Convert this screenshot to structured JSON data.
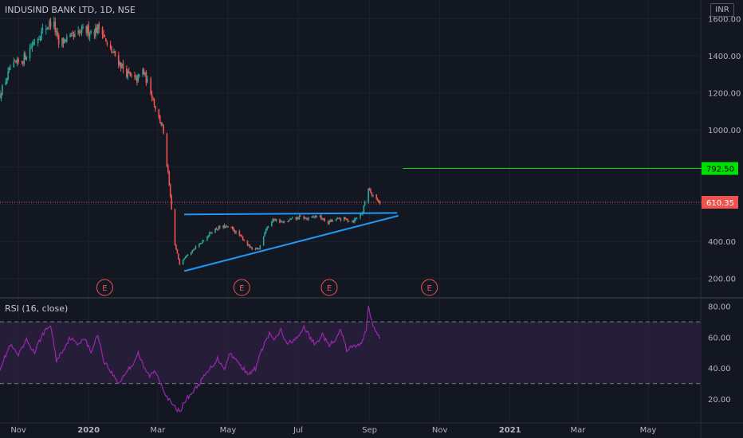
{
  "header": {
    "symbol_title": "INDUSIND BANK LTD, 1D, NSE",
    "currency": "INR"
  },
  "rsi_header": {
    "title": "RSI (16, close)"
  },
  "colors": {
    "background": "#131722",
    "grid": "#1e222d",
    "axis_text": "#b2b5be",
    "candle_up": "#26a69a",
    "candle_down": "#ef5350",
    "trendline": "#2196f3",
    "target_line": "#00e000",
    "price_line": "#ef5350",
    "rsi_line": "#9c27b0",
    "rsi_band": "#2a1e3c",
    "earnings": "#ef5350"
  },
  "chart_data": [
    {
      "type": "candlestick",
      "title": "INDUSIND BANK LTD, 1D, NSE",
      "currency": "INR",
      "x_tick_labels": [
        "Nov",
        "2020",
        "Mar",
        "May",
        "Jul",
        "Sep",
        "Nov",
        "2021",
        "Mar",
        "May"
      ],
      "x_ticks": [
        "2019-11-01",
        "2020-01-01",
        "2020-03-01",
        "2020-05-01",
        "2020-07-01",
        "2020-09-01",
        "2020-11-01",
        "2021-01-01",
        "2021-03-01",
        "2021-05-01"
      ],
      "y_ticks": [
        200,
        400,
        600,
        800,
        1000,
        1200,
        1400,
        1600
      ],
      "y_tick_labels": [
        "200.00",
        "400.00",
        "600.00",
        "800.00",
        "1000.00",
        "1200.00",
        "1400.00",
        "1600.00"
      ],
      "ylim": [
        100,
        1700
      ],
      "xlim": [
        "2019-10-16",
        "2021-06-15"
      ],
      "price_path": [
        [
          "2019-10-16",
          1190
        ],
        [
          "2019-10-25",
          1330
        ],
        [
          "2019-11-05",
          1380
        ],
        [
          "2019-11-15",
          1480
        ],
        [
          "2019-11-26",
          1560
        ],
        [
          "2019-12-01",
          1590
        ],
        [
          "2019-12-06",
          1460
        ],
        [
          "2019-12-12",
          1490
        ],
        [
          "2019-12-20",
          1500
        ],
        [
          "2019-12-28",
          1540
        ],
        [
          "2020-01-05",
          1530
        ],
        [
          "2020-01-12",
          1560
        ],
        [
          "2020-01-17",
          1450
        ],
        [
          "2020-01-24",
          1400
        ],
        [
          "2020-01-31",
          1330
        ],
        [
          "2020-02-07",
          1280
        ],
        [
          "2020-02-12",
          1270
        ],
        [
          "2020-02-17",
          1320
        ],
        [
          "2020-02-24",
          1210
        ],
        [
          "2020-03-01",
          1080
        ],
        [
          "2020-03-05",
          1020
        ],
        [
          "2020-03-10",
          760
        ],
        [
          "2020-03-16",
          380
        ],
        [
          "2020-03-20",
          280
        ],
        [
          "2020-03-26",
          330
        ],
        [
          "2020-04-02",
          360
        ],
        [
          "2020-04-10",
          410
        ],
        [
          "2020-04-18",
          460
        ],
        [
          "2020-04-26",
          480
        ],
        [
          "2020-05-04",
          470
        ],
        [
          "2020-05-13",
          420
        ],
        [
          "2020-05-22",
          355
        ],
        [
          "2020-05-28",
          360
        ],
        [
          "2020-06-03",
          470
        ],
        [
          "2020-06-10",
          520
        ],
        [
          "2020-06-18",
          500
        ],
        [
          "2020-06-26",
          520
        ],
        [
          "2020-07-03",
          530
        ],
        [
          "2020-07-10",
          520
        ],
        [
          "2020-07-18",
          540
        ],
        [
          "2020-07-26",
          500
        ],
        [
          "2020-08-03",
          520
        ],
        [
          "2020-08-10",
          520
        ],
        [
          "2020-08-18",
          510
        ],
        [
          "2020-08-26",
          560
        ],
        [
          "2020-08-31",
          690
        ],
        [
          "2020-09-05",
          640
        ],
        [
          "2020-09-10",
          610
        ]
      ],
      "earnings_markers": [
        {
          "label": "E",
          "date": "2020-01-15"
        },
        {
          "label": "E",
          "date": "2020-05-13"
        },
        {
          "label": "E",
          "date": "2020-07-28"
        },
        {
          "label": "E",
          "date": "2020-10-23"
        }
      ],
      "trendlines": [
        {
          "name": "resistance",
          "from": [
            "2020-03-24",
            545
          ],
          "to": [
            "2020-09-25",
            553
          ]
        },
        {
          "name": "support",
          "from": [
            "2020-03-24",
            240
          ],
          "to": [
            "2020-09-26",
            538
          ]
        }
      ],
      "target_level": {
        "value": 792.5,
        "label": "792.50",
        "from": "2020-09-30"
      },
      "last_price": {
        "value": 610.35,
        "label": "610.35"
      }
    },
    {
      "type": "line",
      "title": "RSI (16, close)",
      "y_ticks": [
        20,
        40,
        60,
        80
      ],
      "y_tick_labels": [
        "20.00",
        "40.00",
        "60.00",
        "80.00"
      ],
      "ylim": [
        5,
        85
      ],
      "band": [
        30,
        70
      ],
      "series": [
        {
          "values": [
            [
              "2019-10-16",
              40
            ],
            [
              "2019-10-25",
              55
            ],
            [
              "2019-11-01",
              48
            ],
            [
              "2019-11-08",
              58
            ],
            [
              "2019-11-15",
              50
            ],
            [
              "2019-11-22",
              62
            ],
            [
              "2019-11-29",
              68
            ],
            [
              "2019-12-04",
              45
            ],
            [
              "2019-12-10",
              52
            ],
            [
              "2019-12-16",
              60
            ],
            [
              "2019-12-22",
              55
            ],
            [
              "2019-12-28",
              60
            ],
            [
              "2020-01-03",
              50
            ],
            [
              "2020-01-09",
              62
            ],
            [
              "2020-01-14",
              45
            ],
            [
              "2020-01-20",
              38
            ],
            [
              "2020-01-27",
              30
            ],
            [
              "2020-02-03",
              38
            ],
            [
              "2020-02-08",
              42
            ],
            [
              "2020-02-13",
              50
            ],
            [
              "2020-02-18",
              40
            ],
            [
              "2020-02-23",
              35
            ],
            [
              "2020-02-28",
              38
            ],
            [
              "2020-03-05",
              28
            ],
            [
              "2020-03-10",
              20
            ],
            [
              "2020-03-15",
              15
            ],
            [
              "2020-03-20",
              12
            ],
            [
              "2020-03-26",
              20
            ],
            [
              "2020-04-01",
              25
            ],
            [
              "2020-04-06",
              30
            ],
            [
              "2020-04-11",
              35
            ],
            [
              "2020-04-16",
              40
            ],
            [
              "2020-04-22",
              46
            ],
            [
              "2020-04-28",
              40
            ],
            [
              "2020-05-03",
              50
            ],
            [
              "2020-05-08",
              45
            ],
            [
              "2020-05-14",
              40
            ],
            [
              "2020-05-20",
              36
            ],
            [
              "2020-05-25",
              40
            ],
            [
              "2020-06-01",
              55
            ],
            [
              "2020-06-06",
              62
            ],
            [
              "2020-06-11",
              58
            ],
            [
              "2020-06-16",
              65
            ],
            [
              "2020-06-21",
              55
            ],
            [
              "2020-06-26",
              58
            ],
            [
              "2020-07-02",
              60
            ],
            [
              "2020-07-06",
              67
            ],
            [
              "2020-07-11",
              60
            ],
            [
              "2020-07-16",
              55
            ],
            [
              "2020-07-22",
              62
            ],
            [
              "2020-07-27",
              55
            ],
            [
              "2020-08-02",
              57
            ],
            [
              "2020-08-07",
              65
            ],
            [
              "2020-08-12",
              52
            ],
            [
              "2020-08-18",
              54
            ],
            [
              "2020-08-24",
              55
            ],
            [
              "2020-08-29",
              65
            ],
            [
              "2020-08-31",
              79
            ],
            [
              "2020-09-04",
              68
            ],
            [
              "2020-09-07",
              62
            ],
            [
              "2020-09-10",
              60
            ]
          ]
        }
      ]
    }
  ]
}
